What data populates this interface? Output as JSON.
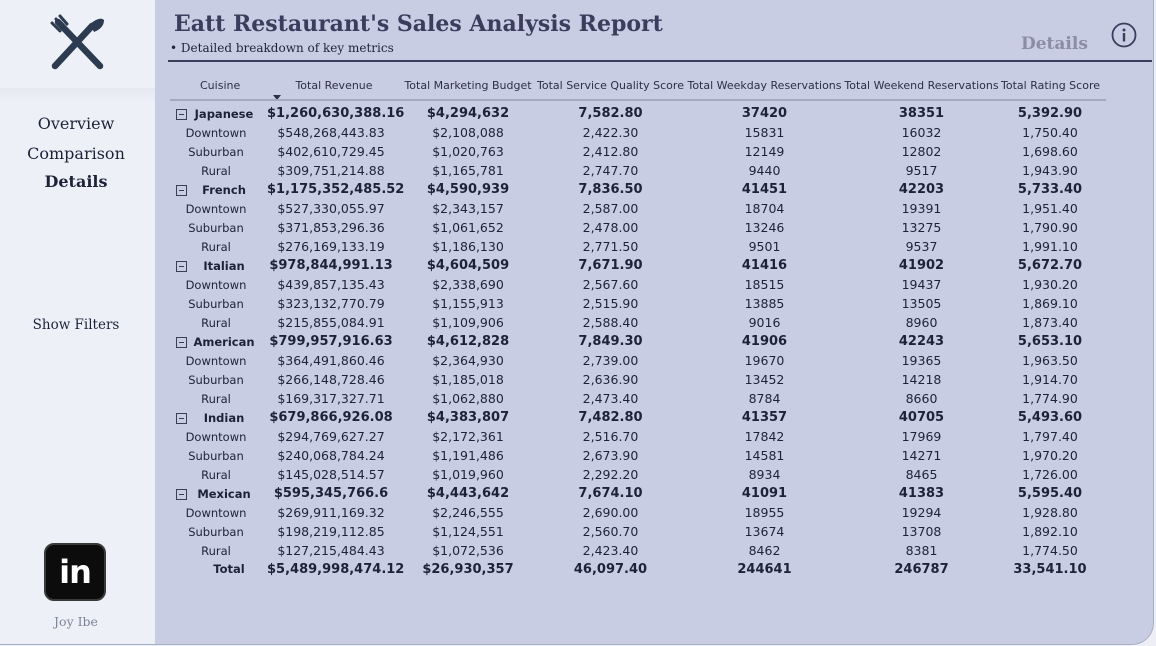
{
  "report": {
    "title": "Eatt Restaurant's Sales Analysis Report",
    "subtitle": "• Detailed breakdown of key metrics",
    "page_label": "Details"
  },
  "sidebar": {
    "logo_icon": "fork-knife-icon",
    "nav": [
      {
        "label": "Overview",
        "active": false
      },
      {
        "label": "Comparison",
        "active": false
      },
      {
        "label": "Details",
        "active": true
      }
    ],
    "show_filters_label": "Show Filters",
    "linkedin_label": "in",
    "author": "Joy Ibe"
  },
  "table": {
    "columns": [
      "Cuisine",
      "Total Revenue",
      "Total Marketing Budget",
      "Total Service Quality Score",
      "Total Weekday Reservations",
      "Total Weekend Reservations",
      "Total Rating Score"
    ],
    "groups": [
      {
        "name": "Japanese",
        "values": [
          "$1,260,630,388.16",
          "$4,294,632",
          "7,582.80",
          "37420",
          "38351",
          "5,392.90"
        ],
        "children": [
          {
            "name": "Downtown",
            "values": [
              "$548,268,443.83",
              "$2,108,088",
              "2,422.30",
              "15831",
              "16032",
              "1,750.40"
            ]
          },
          {
            "name": "Suburban",
            "values": [
              "$402,610,729.45",
              "$1,020,763",
              "2,412.80",
              "12149",
              "12802",
              "1,698.60"
            ]
          },
          {
            "name": "Rural",
            "values": [
              "$309,751,214.88",
              "$1,165,781",
              "2,747.70",
              "9440",
              "9517",
              "1,943.90"
            ]
          }
        ]
      },
      {
        "name": "French",
        "values": [
          "$1,175,352,485.52",
          "$4,590,939",
          "7,836.50",
          "41451",
          "42203",
          "5,733.40"
        ],
        "children": [
          {
            "name": "Downtown",
            "values": [
              "$527,330,055.97",
              "$2,343,157",
              "2,587.00",
              "18704",
              "19391",
              "1,951.40"
            ]
          },
          {
            "name": "Suburban",
            "values": [
              "$371,853,296.36",
              "$1,061,652",
              "2,478.00",
              "13246",
              "13275",
              "1,790.90"
            ]
          },
          {
            "name": "Rural",
            "values": [
              "$276,169,133.19",
              "$1,186,130",
              "2,771.50",
              "9501",
              "9537",
              "1,991.10"
            ]
          }
        ]
      },
      {
        "name": "Italian",
        "values": [
          "$978,844,991.13",
          "$4,604,509",
          "7,671.90",
          "41416",
          "41902",
          "5,672.70"
        ],
        "children": [
          {
            "name": "Downtown",
            "values": [
              "$439,857,135.43",
              "$2,338,690",
              "2,567.60",
              "18515",
              "19437",
              "1,930.20"
            ]
          },
          {
            "name": "Suburban",
            "values": [
              "$323,132,770.79",
              "$1,155,913",
              "2,515.90",
              "13885",
              "13505",
              "1,869.10"
            ]
          },
          {
            "name": "Rural",
            "values": [
              "$215,855,084.91",
              "$1,109,906",
              "2,588.40",
              "9016",
              "8960",
              "1,873.40"
            ]
          }
        ]
      },
      {
        "name": "American",
        "values": [
          "$799,957,916.63",
          "$4,612,828",
          "7,849.30",
          "41906",
          "42243",
          "5,653.10"
        ],
        "children": [
          {
            "name": "Downtown",
            "values": [
              "$364,491,860.46",
              "$2,364,930",
              "2,739.00",
              "19670",
              "19365",
              "1,963.50"
            ]
          },
          {
            "name": "Suburban",
            "values": [
              "$266,148,728.46",
              "$1,185,018",
              "2,636.90",
              "13452",
              "14218",
              "1,914.70"
            ]
          },
          {
            "name": "Rural",
            "values": [
              "$169,317,327.71",
              "$1,062,880",
              "2,473.40",
              "8784",
              "8660",
              "1,774.90"
            ]
          }
        ]
      },
      {
        "name": "Indian",
        "values": [
          "$679,866,926.08",
          "$4,383,807",
          "7,482.80",
          "41357",
          "40705",
          "5,493.60"
        ],
        "children": [
          {
            "name": "Downtown",
            "values": [
              "$294,769,627.27",
              "$2,172,361",
              "2,516.70",
              "17842",
              "17969",
              "1,797.40"
            ]
          },
          {
            "name": "Suburban",
            "values": [
              "$240,068,784.24",
              "$1,191,486",
              "2,673.90",
              "14581",
              "14271",
              "1,970.20"
            ]
          },
          {
            "name": "Rural",
            "values": [
              "$145,028,514.57",
              "$1,019,960",
              "2,292.20",
              "8934",
              "8465",
              "1,726.00"
            ]
          }
        ]
      },
      {
        "name": "Mexican",
        "values": [
          "$595,345,766.6",
          "$4,443,642",
          "7,674.10",
          "41091",
          "41383",
          "5,595.40"
        ],
        "children": [
          {
            "name": "Downtown",
            "values": [
              "$269,911,169.32",
              "$2,246,555",
              "2,690.00",
              "18955",
              "19294",
              "1,928.80"
            ]
          },
          {
            "name": "Suburban",
            "values": [
              "$198,219,112.85",
              "$1,124,551",
              "2,560.70",
              "13674",
              "13708",
              "1,892.10"
            ]
          },
          {
            "name": "Rural",
            "values": [
              "$127,215,484.43",
              "$1,072,536",
              "2,423.40",
              "8462",
              "8381",
              "1,774.50"
            ]
          }
        ]
      }
    ],
    "total": {
      "label": "Total",
      "values": [
        "$5,489,998,474.12",
        "$26,930,357",
        "46,097.40",
        "244641",
        "246787",
        "33,541.10"
      ]
    }
  }
}
